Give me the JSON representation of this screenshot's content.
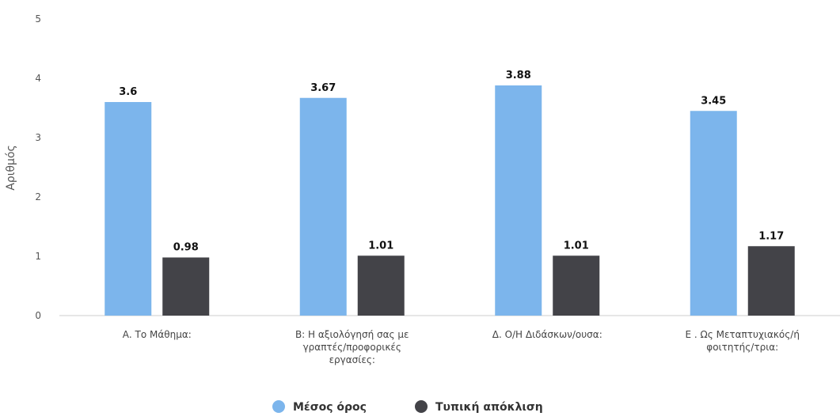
{
  "chart_data": {
    "type": "bar",
    "ylabel": "Αριθμός",
    "ylim": [
      0,
      5
    ],
    "yticks": [
      "0",
      "1",
      "2",
      "3",
      "4",
      "5"
    ],
    "grid": false,
    "legend_position": "bottom",
    "categories": [
      [
        "Α. Το Μάθημα:"
      ],
      [
        "Β: Η αξιολόγησή σας με",
        "γραπτές/προφορικές",
        "εργασίες:"
      ],
      [
        "Δ. Ο/Η Διδάσκων/ουσα:"
      ],
      [
        "Ε . Ως Μεταπτυχιακός/ή",
        "φοιτητής/τρια:"
      ]
    ],
    "series": [
      {
        "name": "Μέσος όρος",
        "color": "#7cb5ec",
        "values": [
          3.6,
          3.67,
          3.88,
          3.45
        ],
        "labels": [
          "3.6",
          "3.67",
          "3.88",
          "3.45"
        ]
      },
      {
        "name": "Τυπική απόκλιση",
        "color": "#434348",
        "values": [
          0.98,
          1.01,
          1.01,
          1.17
        ],
        "labels": [
          "0.98",
          "1.01",
          "1.01",
          "1.17"
        ]
      }
    ]
  }
}
